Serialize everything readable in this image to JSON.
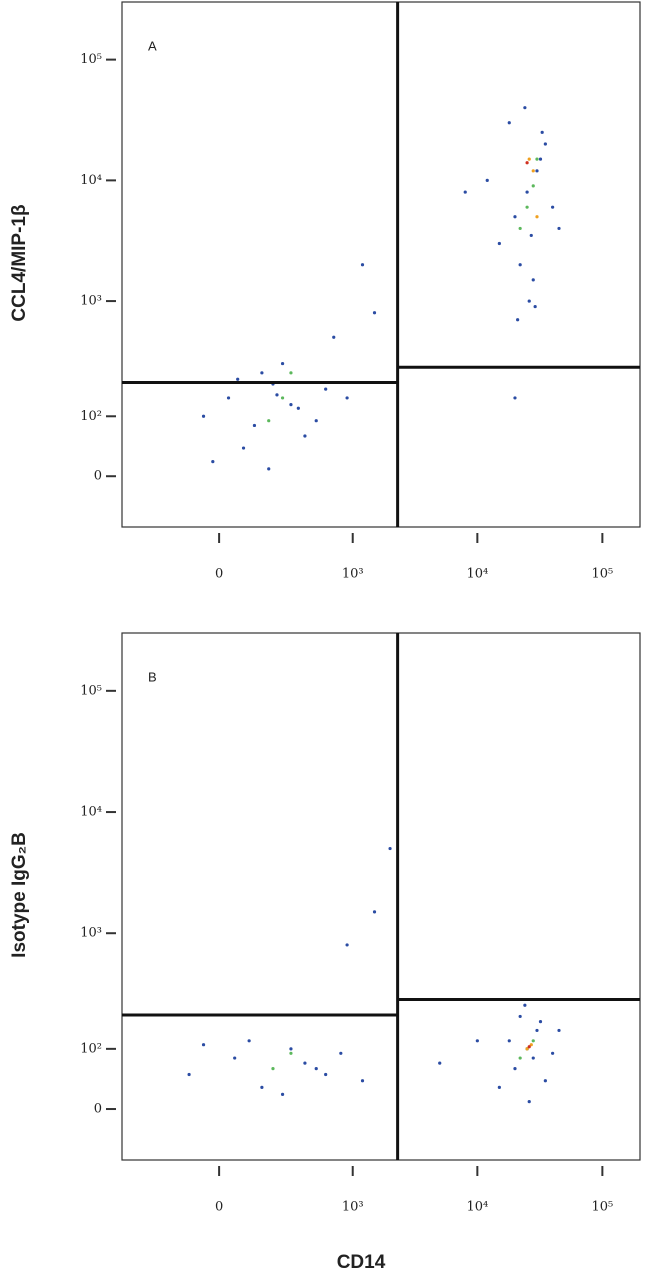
{
  "chart_data": [
    {
      "type": "scatter",
      "panel": "A",
      "ylabel": "CCL4/MIP-1β",
      "xlim": [
        -500,
        200000
      ],
      "ylim": [
        -80,
        300000
      ],
      "xticks": [
        0,
        {
          "value": 1000,
          "label": "10³"
        },
        {
          "value": 10000,
          "label": "10⁴"
        },
        {
          "value": 100000,
          "label": "10⁵"
        }
      ],
      "yticks": [
        0,
        {
          "value": 100,
          "label": "10²"
        },
        {
          "value": 1000,
          "label": "10³"
        },
        {
          "value": 10000,
          "label": "10⁴"
        },
        {
          "value": 100000,
          "label": "10⁵"
        }
      ],
      "gate_x": 2300,
      "gate_y_left": 206,
      "gate_y_right": 279,
      "series": [
        {
          "color": "#2b4ca3",
          "x": [
            -50,
            30,
            120,
            200,
            350,
            80,
            250,
            400,
            600,
            150,
            -20,
            300,
            500,
            900,
            60,
            180,
            220,
            700,
            1200,
            1500,
            15000,
            20000,
            25000,
            30000,
            35000,
            22000,
            18000,
            28000,
            40000,
            32000,
            24000,
            26000,
            12000,
            45000,
            21000,
            29000,
            33000,
            27000,
            8000,
            20000
          ],
          "values": [
            100,
            150,
            80,
            200,
            120,
            40,
            300,
            60,
            180,
            250,
            20,
            130,
            90,
            150,
            220,
            10,
            160,
            500,
            2000,
            800,
            3000,
            5000,
            8000,
            12000,
            20000,
            2000,
            30000,
            1500,
            6000,
            15000,
            40000,
            1000,
            10000,
            4000,
            700,
            900,
            25000,
            3500,
            8000,
            150
          ]
        },
        {
          "color": "#5cb85c",
          "x": [
            250,
            300,
            180,
            25000,
            30000,
            22000,
            28000
          ],
          "values": [
            150,
            250,
            90,
            6000,
            15000,
            4000,
            9000
          ]
        },
        {
          "color": "#f0a020",
          "x": [
            28000,
            26000,
            30000
          ],
          "values": [
            12000,
            15000,
            5000
          ]
        },
        {
          "color": "#d03020",
          "x": [
            25000
          ],
          "values": [
            14000
          ]
        }
      ]
    },
    {
      "type": "scatter",
      "panel": "B",
      "ylabel": "Isotype IgG₂B",
      "xlabel": "CD14",
      "xlim": [
        -500,
        200000
      ],
      "ylim": [
        -80,
        300000
      ],
      "xticks": [
        0,
        {
          "value": 1000,
          "label": "10³"
        },
        {
          "value": 10000,
          "label": "10⁴"
        },
        {
          "value": 100000,
          "label": "10⁵"
        }
      ],
      "yticks": [
        0,
        {
          "value": 100,
          "label": "10²"
        },
        {
          "value": 1000,
          "label": "10³"
        },
        {
          "value": 10000,
          "label": "10⁴"
        },
        {
          "value": 100000,
          "label": "10⁵"
        }
      ],
      "gate_x": 2300,
      "gate_y_left": 206,
      "gate_y_right": 280,
      "series": [
        {
          "color": "#2b4ca3",
          "x": [
            -100,
            50,
            150,
            300,
            500,
            800,
            1200,
            100,
            250,
            400,
            -50,
            600,
            2000,
            1500,
            900,
            20000,
            25000,
            30000,
            35000,
            18000,
            22000,
            28000,
            40000,
            15000,
            10000,
            5000,
            45000,
            24000,
            26000,
            32000
          ],
          "values": [
            50,
            80,
            30,
            100,
            60,
            90,
            40,
            120,
            20,
            70,
            110,
            50,
            5000,
            1500,
            800,
            60,
            100,
            150,
            40,
            120,
            200,
            80,
            90,
            30,
            120,
            70,
            150,
            250,
            10,
            180
          ]
        },
        {
          "color": "#5cb85c",
          "x": [
            200,
            300,
            25000,
            28000,
            22000
          ],
          "values": [
            60,
            90,
            100,
            120,
            80
          ]
        },
        {
          "color": "#f0a020",
          "x": [
            25000,
            27000
          ],
          "values": [
            100,
            110
          ]
        },
        {
          "color": "#d03020",
          "x": [
            26000
          ],
          "values": [
            105
          ]
        }
      ]
    }
  ]
}
